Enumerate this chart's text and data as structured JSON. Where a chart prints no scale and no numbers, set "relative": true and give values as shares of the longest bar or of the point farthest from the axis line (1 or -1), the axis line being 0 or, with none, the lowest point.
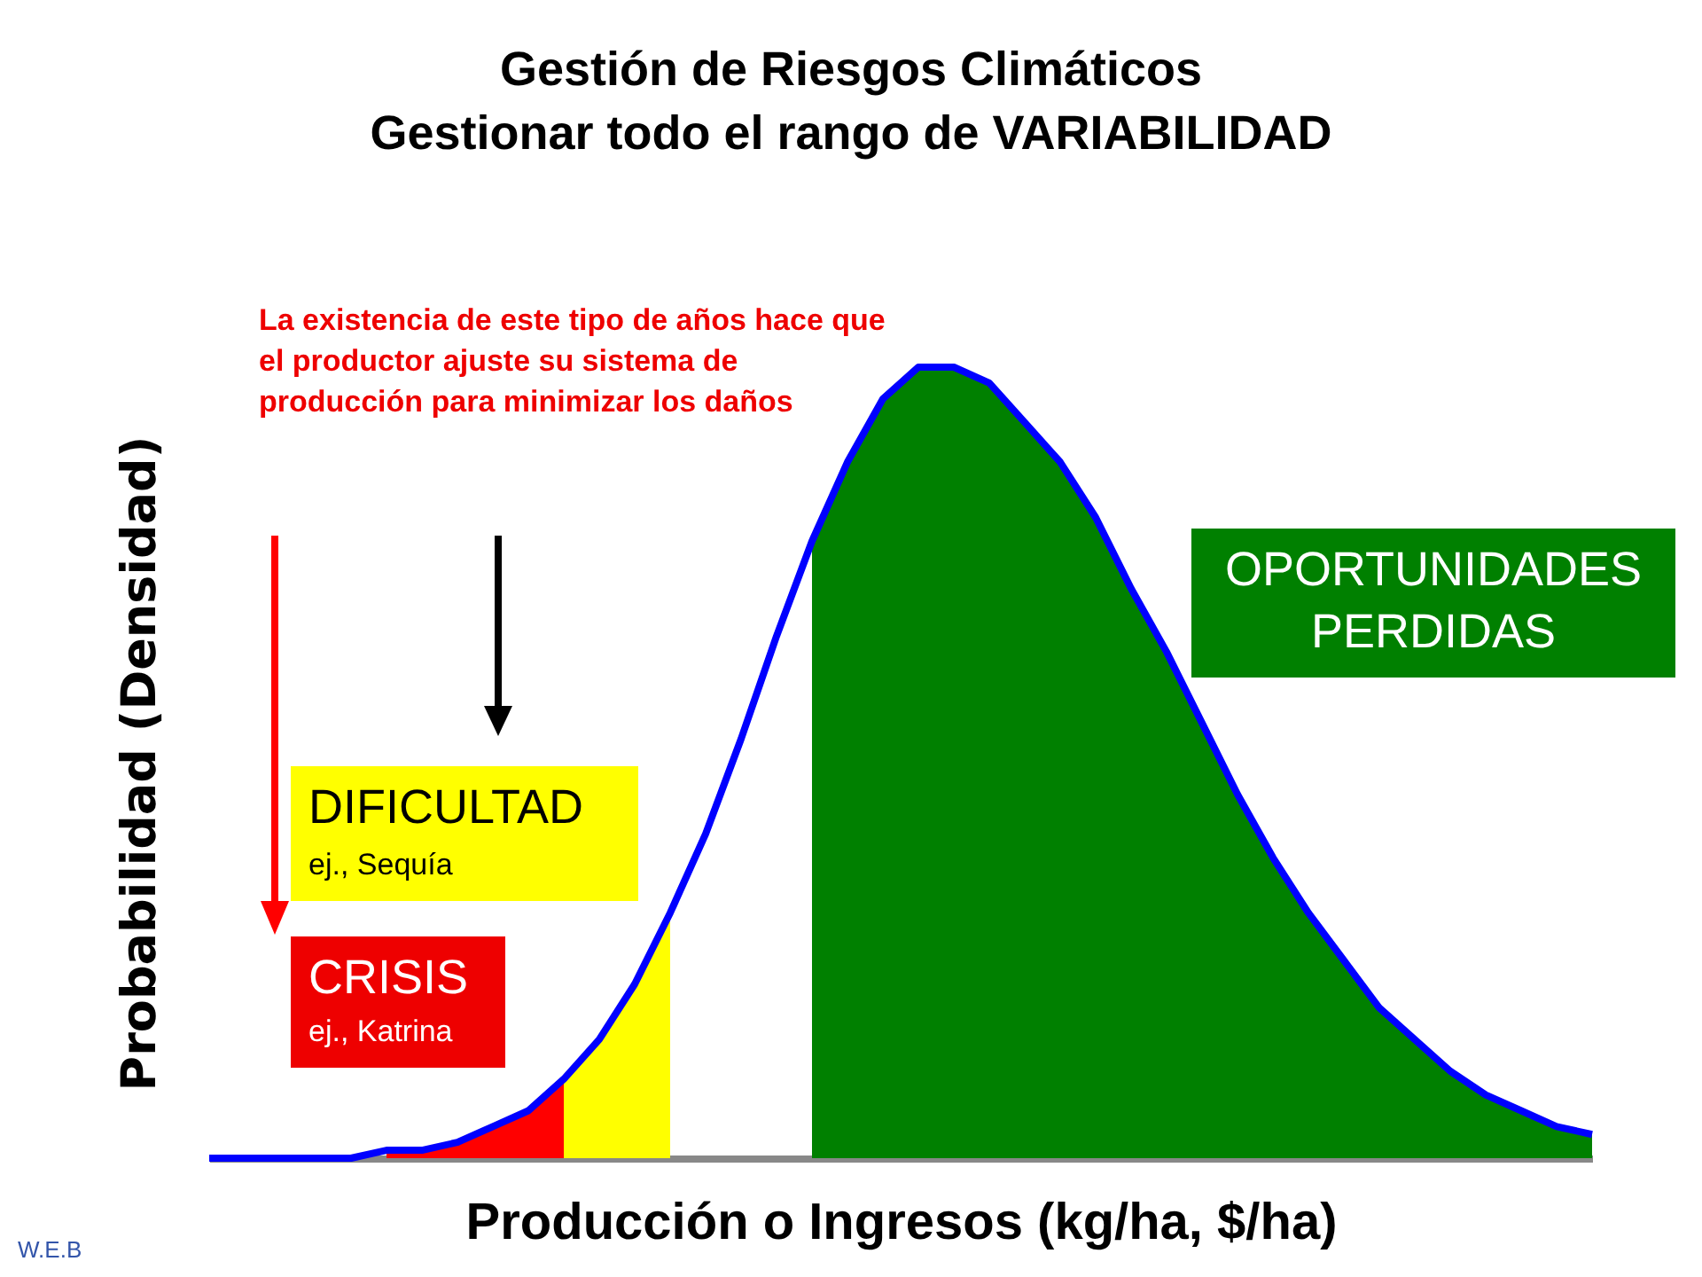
{
  "chart_data": {
    "type": "area",
    "title": "Gestión de Riesgos Climáticos",
    "subtitle": "Gestionar todo el rango de VARIABILIDAD",
    "xlabel": "Producción o Ingresos (kg/ha, $/ha)",
    "ylabel": "Probabilidad (Densidad)",
    "relative": true,
    "categories": [
      null,
      null,
      null,
      null,
      null,
      null,
      null,
      null,
      null,
      null,
      null,
      null,
      null,
      null,
      null,
      null,
      null,
      null,
      null,
      null,
      null,
      null,
      null,
      null,
      null,
      null,
      null,
      null,
      null,
      null,
      null,
      null,
      null,
      null,
      null,
      null,
      null,
      null,
      null,
      null
    ],
    "series": [
      {
        "type": "area",
        "color": "#ff0000",
        "values": [
          null,
          null,
          null,
          null,
          null,
          0.01,
          0.01,
          0.02,
          0.04,
          0.06,
          0.1,
          null,
          null,
          null,
          null,
          null,
          null,
          null,
          null,
          null,
          null,
          null,
          null,
          null,
          null,
          null,
          null,
          null,
          null,
          null,
          null,
          null,
          null,
          null,
          null,
          null,
          null,
          null,
          null,
          null
        ]
      },
      {
        "type": "area",
        "color": "#ffff00",
        "values": [
          null,
          null,
          null,
          null,
          null,
          null,
          null,
          null,
          null,
          null,
          0.1,
          0.15,
          0.22,
          0.31,
          null,
          null,
          null,
          null,
          null,
          null,
          null,
          null,
          null,
          null,
          null,
          null,
          null,
          null,
          null,
          null,
          null,
          null,
          null,
          null,
          null,
          null,
          null,
          null,
          null,
          null
        ]
      },
      {
        "type": "area",
        "color": "#008000",
        "values": [
          null,
          null,
          null,
          null,
          null,
          null,
          null,
          null,
          null,
          null,
          null,
          null,
          null,
          null,
          null,
          null,
          null,
          0.78,
          0.88,
          0.96,
          1,
          1,
          0.98,
          0.93,
          0.88,
          0.81,
          0.72,
          0.64,
          0.55,
          0.46,
          0.38,
          0.31,
          0.25,
          0.19,
          0.15,
          0.11,
          0.08,
          0.06,
          0.04,
          0.03
        ]
      },
      {
        "type": "line",
        "color": "#0000ff",
        "values": [
          0,
          0,
          0,
          0,
          0,
          0.01,
          0.01,
          0.02,
          0.04,
          0.06,
          0.1,
          0.15,
          0.22,
          0.31,
          0.41,
          0.53,
          0.66,
          0.78,
          0.88,
          0.96,
          1,
          1,
          0.98,
          0.93,
          0.88,
          0.81,
          0.72,
          0.64,
          0.55,
          0.46,
          0.38,
          0.31,
          0.25,
          0.19,
          0.15,
          0.11,
          0.08,
          0.06,
          0.04,
          0.03
        ]
      }
    ],
    "annotations": [
      "La existencia de este tipo de años hace que el productor ajuste su sistema de producción para minimizar los daños",
      "DIFICULTAD",
      "ej., Sequía",
      "CRISIS",
      "ej., Katrina",
      "OPORTUNIDADES PERDIDAS",
      "W.E.B"
    ]
  }
}
